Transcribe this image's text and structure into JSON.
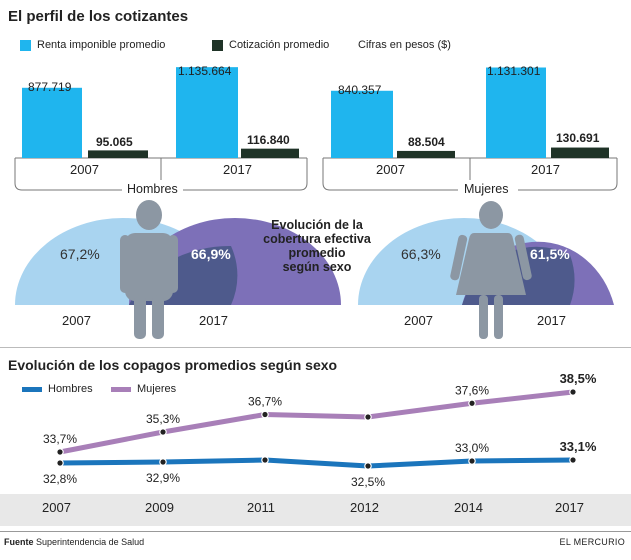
{
  "top": {
    "title": "El perfil de los cotizantes",
    "legend": {
      "renta": "Renta imponible promedio",
      "cotizacion": "Cotización promedio",
      "unit": "Cifras en pesos ($)"
    },
    "groups": [
      {
        "name": "Hombres",
        "years": [
          "2007",
          "2017"
        ],
        "renta": [
          "877.719",
          "1.135.664"
        ],
        "cotizacion": [
          "95.065",
          "116.840"
        ]
      },
      {
        "name": "Mujeres",
        "years": [
          "2007",
          "2017"
        ],
        "renta": [
          "840.357",
          "1.131.301"
        ],
        "cotizacion": [
          "88.504",
          "130.691"
        ]
      }
    ]
  },
  "coverage": {
    "title": "Evolución de la cobertura efectiva promedio según sexo",
    "title_lines": [
      "Evolución de la",
      "cobertura efectiva",
      "promedio",
      "según sexo"
    ],
    "hombres": {
      "y2007": "67,2%",
      "y2017": "66,9%",
      "label2007": "2007",
      "label2017": "2017"
    },
    "mujeres": {
      "y2007": "66,3%",
      "y2017": "61,5%",
      "label2007": "2007",
      "label2017": "2017"
    }
  },
  "copagos": {
    "title": "Evolución de los copagos promedios según sexo",
    "legend_hombres": "Hombres",
    "legend_mujeres": "Mujeres",
    "years": [
      "2007",
      "2009",
      "2011",
      "2012",
      "2014",
      "2017"
    ]
  },
  "source": {
    "label": "Fuente",
    "text": "Superintendencia de Salud"
  },
  "brand": "EL MERCURIO",
  "colors": {
    "cyan": "#1fb5ee",
    "dark": "#1f3327",
    "blue": "#1b75bc",
    "purple": "#a87fb8",
    "light_blue": "#a9d4f0",
    "violet": "#7d70b8",
    "person": "#8c97a3"
  },
  "chart_data": [
    {
      "type": "bar",
      "title": "El perfil de los cotizantes",
      "ylabel": "Cifras en pesos ($)",
      "categories": [
        "Hombres 2007",
        "Hombres 2017",
        "Mujeres 2007",
        "Mujeres 2017"
      ],
      "series": [
        {
          "name": "Renta imponible promedio",
          "values": [
            877719,
            1135664,
            840357,
            1131301
          ]
        },
        {
          "name": "Cotización promedio",
          "values": [
            95065,
            116840,
            88504,
            130691
          ]
        }
      ],
      "ylim": [
        0,
        1200000
      ]
    },
    {
      "type": "area",
      "title": "Evolución de la cobertura efectiva promedio según sexo",
      "categories": [
        "2007",
        "2017"
      ],
      "series": [
        {
          "name": "Hombres",
          "values": [
            67.2,
            66.9
          ]
        },
        {
          "name": "Mujeres",
          "values": [
            66.3,
            61.5
          ]
        }
      ]
    },
    {
      "type": "line",
      "title": "Evolución de los copagos promedios según sexo",
      "x": [
        "2007",
        "2009",
        "2011",
        "2012",
        "2014",
        "2017"
      ],
      "series": [
        {
          "name": "Hombres",
          "values": [
            32.8,
            32.9,
            33.1,
            32.5,
            33.0,
            33.1
          ]
        },
        {
          "name": "Mujeres",
          "values": [
            33.7,
            35.3,
            36.7,
            36.5,
            37.6,
            38.5
          ]
        }
      ],
      "labels": {
        "Hombres": [
          "32,8%",
          "32,9%",
          "",
          "32,5%",
          "33,0%",
          "33,1%"
        ],
        "Mujeres": [
          "33,7%",
          "35,3%",
          "36,7%",
          "",
          "37,6%",
          "38,5%"
        ]
      },
      "ylim": [
        31,
        40
      ]
    }
  ]
}
